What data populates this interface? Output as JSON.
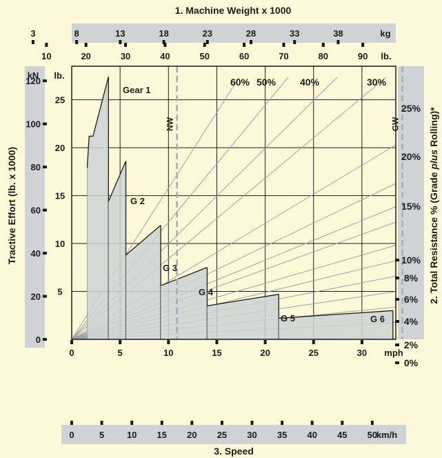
{
  "chart_data": {
    "type": "line",
    "top_title": "1. Machine Weight x 1000",
    "bottom_title": "3. Speed",
    "left_title": "Tractive Effort (lb. x 1000)",
    "right_title_parts": [
      "2. Total Resistance % (Grade ",
      "plus",
      " Rolling)*"
    ],
    "weight_kg": {
      "unit": "kg",
      "ticks": [
        "3",
        "8",
        "13",
        "18",
        "23",
        "28",
        "33",
        "38"
      ],
      "values": [
        3,
        8,
        13,
        18,
        23,
        28,
        33,
        38
      ]
    },
    "weight_lb": {
      "unit": "lb.",
      "ticks": [
        "10",
        "20",
        "30",
        "40",
        "50",
        "60",
        "70",
        "80",
        "90"
      ],
      "values": [
        10,
        20,
        30,
        40,
        50,
        60,
        70,
        80,
        90
      ]
    },
    "speed_mph": {
      "unit": "mph",
      "ticks": [
        "0",
        "5",
        "10",
        "15",
        "20",
        "25",
        "30"
      ],
      "values": [
        0,
        5,
        10,
        15,
        20,
        25,
        30
      ],
      "range": [
        0,
        33.5
      ]
    },
    "speed_kmh": {
      "unit": "km/h",
      "ticks": [
        "0",
        "5",
        "10",
        "15",
        "20",
        "25",
        "30",
        "35",
        "40",
        "45",
        "50"
      ],
      "values": [
        0,
        5,
        10,
        15,
        20,
        25,
        30,
        35,
        40,
        45,
        50
      ]
    },
    "force_lb": {
      "unit": "lb.",
      "ticks": [
        "5",
        "10",
        "15",
        "20",
        "25"
      ],
      "values": [
        5,
        10,
        15,
        20,
        25
      ],
      "range": [
        0,
        28.5
      ]
    },
    "force_kn": {
      "unit": "kN",
      "ticks": [
        "0",
        "20",
        "40",
        "60",
        "80",
        "100",
        "120"
      ],
      "values": [
        0,
        20,
        40,
        60,
        80,
        100,
        120
      ]
    },
    "resistance_labels": {
      "right": [
        "25%",
        "20%",
        "15%",
        "10%",
        "8%",
        "6%",
        "4%",
        "2%",
        "0%"
      ],
      "top": [
        "60%",
        "50%",
        "40%",
        "30%"
      ]
    },
    "reference_lines": [
      {
        "label": "NW",
        "weight_lb": 43
      },
      {
        "label": "GW",
        "weight_lb": 100
      }
    ],
    "gears": [
      {
        "label": "Gear 1",
        "speed_range": [
          1.6,
          3.8
        ],
        "curve": [
          [
            1.6,
            17.9
          ],
          [
            1.8,
            21.2
          ],
          [
            2.2,
            21.2
          ],
          [
            3.8,
            27.4
          ]
        ]
      },
      {
        "label": "G 2",
        "speed_range": [
          3.8,
          5.6
        ],
        "curve": [
          [
            3.8,
            14.4
          ],
          [
            5.6,
            18.6
          ]
        ]
      },
      {
        "label": "G 3",
        "speed_range": [
          5.6,
          9.2
        ],
        "curve": [
          [
            5.6,
            8.8
          ],
          [
            9.2,
            11.9
          ]
        ]
      },
      {
        "label": "G 4",
        "speed_range": [
          9.2,
          14
        ],
        "curve": [
          [
            9.2,
            5.6
          ],
          [
            14,
            7.5
          ]
        ]
      },
      {
        "label": "G 5",
        "speed_range": [
          14,
          21.4
        ],
        "curve": [
          [
            14,
            3.5
          ],
          [
            21.4,
            4.7
          ]
        ]
      },
      {
        "label": "G 6",
        "speed_range": [
          21.4,
          33.2
        ],
        "curve": [
          [
            21.4,
            2.2
          ],
          [
            33.2,
            3.0
          ]
        ]
      }
    ],
    "grid": true
  },
  "colors": {
    "background": "#fdf9d8",
    "band": "#cfd3d6",
    "gear_fill": "#cdd3d6",
    "resistance_line": "#9aa0a6",
    "reference_line": "#a8acb0",
    "line": "#1a1a1a"
  }
}
